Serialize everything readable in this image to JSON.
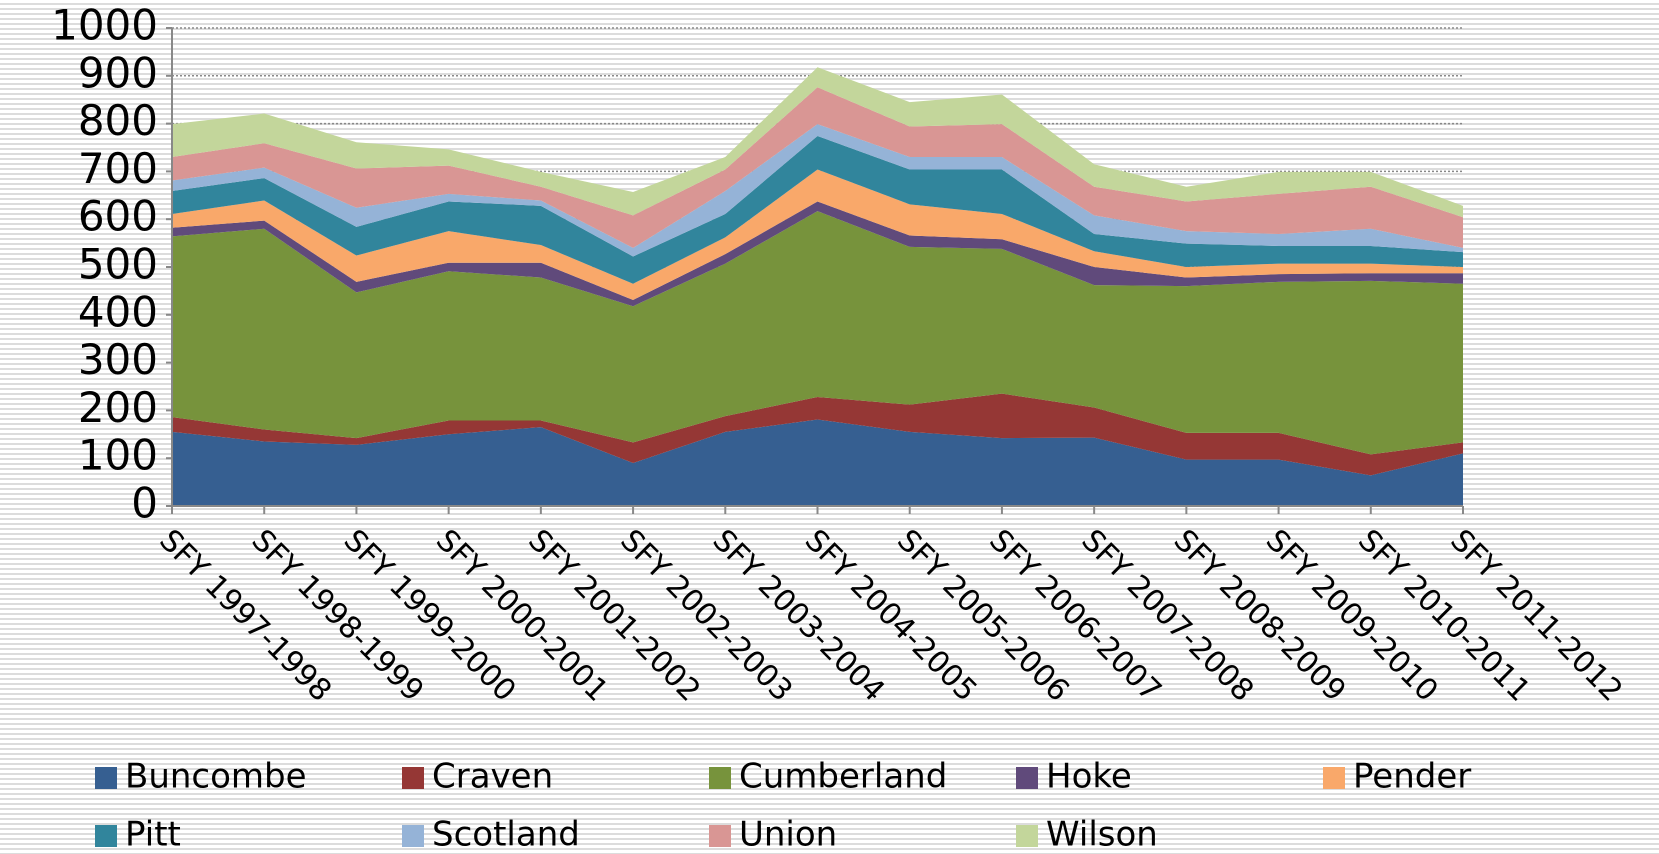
{
  "chart_data": {
    "type": "stacked-area",
    "categories": [
      "SFY 1997-1998",
      "SFY 1998-1999",
      "SFY 1999-2000",
      "SFY 2000-2001",
      "SFY 2001-2002",
      "SFY 2002-2003",
      "SFY 2003-2004",
      "SFY 2004-2005",
      "SFY 2005-2006",
      "SFY 2006-2007",
      "SFY 2007-2008",
      "SFY 2008-2009",
      "SFY 2009-2010",
      "SFY 2010-2011",
      "SFY 2011-2012"
    ],
    "series": [
      {
        "name": "Buncombe",
        "color": "#365f91",
        "values": [
          155,
          135,
          128,
          150,
          165,
          90,
          155,
          181,
          155,
          142,
          143,
          97,
          97,
          64,
          110
        ]
      },
      {
        "name": "Craven",
        "color": "#953735",
        "values": [
          31,
          25,
          14,
          29,
          14,
          43,
          33,
          47,
          57,
          93,
          63,
          56,
          56,
          44,
          23
        ]
      },
      {
        "name": "Cumberland",
        "color": "#77933c",
        "values": [
          378,
          420,
          305,
          312,
          299,
          285,
          319,
          389,
          330,
          303,
          256,
          307,
          316,
          363,
          332
        ]
      },
      {
        "name": "Hoke",
        "color": "#604a7b",
        "values": [
          18,
          17,
          22,
          18,
          31,
          13,
          20,
          20,
          24,
          20,
          38,
          18,
          16,
          16,
          22
        ]
      },
      {
        "name": "Pender",
        "color": "#f9a86a",
        "values": [
          29,
          42,
          55,
          66,
          37,
          34,
          35,
          67,
          65,
          53,
          33,
          22,
          22,
          20,
          13
        ]
      },
      {
        "name": "Pitt",
        "color": "#31859c",
        "values": [
          48,
          47,
          60,
          62,
          82,
          57,
          49,
          70,
          73,
          93,
          36,
          49,
          37,
          37,
          31
        ]
      },
      {
        "name": "Scotland",
        "color": "#95b3d7",
        "values": [
          22,
          22,
          40,
          16,
          11,
          18,
          48,
          25,
          26,
          26,
          39,
          26,
          25,
          36,
          9
        ]
      },
      {
        "name": "Union",
        "color": "#d99694",
        "values": [
          49,
          51,
          82,
          59,
          29,
          68,
          45,
          77,
          64,
          69,
          60,
          62,
          84,
          88,
          64
        ]
      },
      {
        "name": "Wilson",
        "color": "#c3d69b",
        "values": [
          69,
          62,
          55,
          34,
          31,
          49,
          26,
          42,
          51,
          62,
          47,
          31,
          46,
          31,
          24
        ]
      }
    ],
    "ylim": [
      0,
      1000
    ],
    "yticks": [
      0,
      100,
      200,
      300,
      400,
      500,
      600,
      700,
      800,
      900,
      1000
    ],
    "grid": true
  }
}
